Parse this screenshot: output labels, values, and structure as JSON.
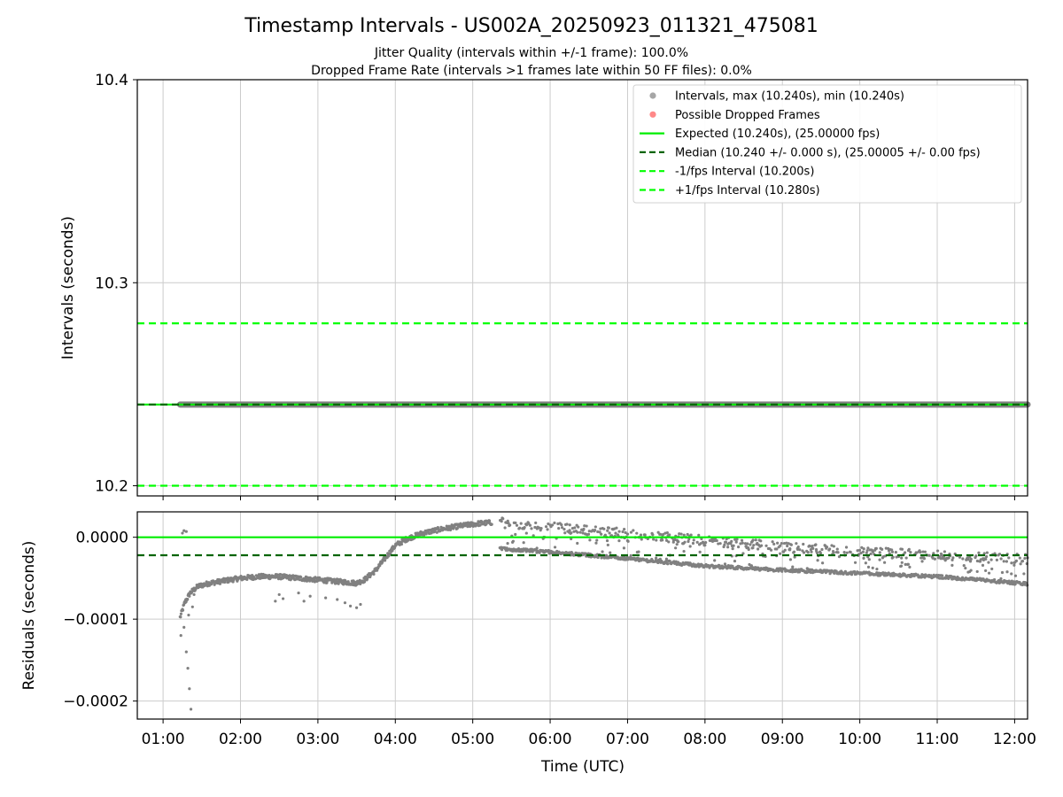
{
  "title": "Timestamp Intervals - US002A_20250923_011321_475081",
  "subtitle_1": "Jitter Quality (intervals within +/-1 frame): 100.0%",
  "subtitle_2": "Dropped Frame Rate (intervals >1 frames late within 50 FF files): 0.0%",
  "colors": {
    "intervals": "#808080",
    "dropped": "#ff5555",
    "expected": "#00ee00",
    "median": "#006400",
    "fps_band": "#00ff00",
    "grid": "#cccccc"
  },
  "chart_data": [
    {
      "type": "scatter",
      "panel": "intervals",
      "ylabel": "Intervals (seconds)",
      "xlabel": "",
      "xlim_hours": [
        0.667,
        12.167
      ],
      "ylim": [
        10.195,
        10.4
      ],
      "y_ticks": [
        10.2,
        10.3,
        10.4
      ],
      "y_tick_labels": [
        "10.2",
        "10.3",
        "10.4"
      ],
      "grid": true,
      "legend_position": "upper-right",
      "interval_points": {
        "x_start_hours": 1.22,
        "x_end_hours": 12.167,
        "y": 10.24
      },
      "dropped_frames": [],
      "reference_lines": [
        {
          "name": "expected",
          "y": 10.24,
          "style": "solid"
        },
        {
          "name": "median",
          "y": 10.24,
          "style": "dashed"
        },
        {
          "name": "minus_fps",
          "y": 10.2,
          "style": "dashed"
        },
        {
          "name": "plus_fps",
          "y": 10.28,
          "style": "dashed"
        }
      ],
      "legend": [
        {
          "label": "Intervals, max (10.240s), min (10.240s)",
          "kind": "dot",
          "color_key": "intervals"
        },
        {
          "label": "Possible Dropped Frames",
          "kind": "dot",
          "color_key": "dropped"
        },
        {
          "label": "Expected (10.240s), (25.00000 fps)",
          "kind": "solid",
          "color_key": "expected"
        },
        {
          "label": "Median (10.240 +/- 0.000 s), (25.00005 +/- 0.00 fps)",
          "kind": "dashed",
          "color_key": "median"
        },
        {
          "label": "-1/fps Interval (10.200s)",
          "kind": "dashed",
          "color_key": "fps_band"
        },
        {
          "label": "+1/fps Interval (10.280s)",
          "kind": "dashed",
          "color_key": "fps_band"
        }
      ]
    },
    {
      "type": "scatter",
      "panel": "residuals",
      "ylabel": "Residuals (seconds)",
      "xlabel": "Time (UTC)",
      "xlim_hours": [
        0.667,
        12.167
      ],
      "ylim": [
        -0.000222,
        3.1e-05
      ],
      "y_ticks": [
        0.0,
        -0.0001,
        -0.0002
      ],
      "y_tick_labels": [
        "0.0000",
        "−0.0001",
        "−0.0002"
      ],
      "x_ticks_hours": [
        1,
        2,
        3,
        4,
        5,
        6,
        7,
        8,
        9,
        10,
        11,
        12
      ],
      "x_tick_labels": [
        "01:00",
        "02:00",
        "03:00",
        "04:00",
        "05:00",
        "06:00",
        "07:00",
        "08:00",
        "09:00",
        "10:00",
        "11:00",
        "12:00"
      ],
      "grid": true,
      "reference_lines": [
        {
          "name": "expected",
          "y": 0.0,
          "style": "solid"
        },
        {
          "name": "median",
          "y": -2.2e-05,
          "style": "dashed"
        }
      ],
      "main_trend": [
        [
          1.22,
          -9.8e-05
        ],
        [
          1.28,
          -8e-05
        ],
        [
          1.35,
          -6.8e-05
        ],
        [
          1.45,
          -6e-05
        ],
        [
          1.6,
          -5.6e-05
        ],
        [
          1.8,
          -5.3e-05
        ],
        [
          2.0,
          -5e-05
        ],
        [
          2.25,
          -4.8e-05
        ],
        [
          2.5,
          -4.8e-05
        ],
        [
          2.75,
          -5e-05
        ],
        [
          3.0,
          -5.2e-05
        ],
        [
          3.25,
          -5.4e-05
        ],
        [
          3.5,
          -5.6e-05
        ],
        [
          3.6,
          -5.2e-05
        ],
        [
          3.75,
          -4e-05
        ],
        [
          3.9,
          -2.2e-05
        ],
        [
          4.0,
          -1e-05
        ],
        [
          4.15,
          -2e-06
        ],
        [
          4.35,
          5e-06
        ],
        [
          4.6,
          1e-05
        ],
        [
          4.85,
          1.4e-05
        ],
        [
          5.1,
          1.7e-05
        ],
        [
          5.25,
          1.8e-05
        ]
      ],
      "lower_branch": [
        [
          5.35,
          -1.4e-05
        ],
        [
          6.0,
          -1.8e-05
        ],
        [
          7.0,
          -2.6e-05
        ],
        [
          8.0,
          -3.5e-05
        ],
        [
          9.0,
          -4e-05
        ],
        [
          10.0,
          -4.4e-05
        ],
        [
          11.0,
          -4.8e-05
        ],
        [
          12.167,
          -5.7e-05
        ]
      ],
      "upper_branch": [
        [
          5.35,
          1.8e-05
        ],
        [
          6.0,
          1.3e-05
        ],
        [
          7.0,
          4e-06
        ],
        [
          8.0,
          -4e-06
        ],
        [
          9.0,
          -1.2e-05
        ],
        [
          10.0,
          -1.8e-05
        ],
        [
          11.0,
          -2.2e-05
        ],
        [
          12.167,
          -2.7e-05
        ]
      ],
      "outliers": [
        [
          1.25,
          5e-06
        ],
        [
          1.27,
          8e-06
        ],
        [
          1.3,
          7e-06
        ],
        [
          1.23,
          -0.00012
        ],
        [
          1.27,
          -0.00011
        ],
        [
          1.3,
          -0.00014
        ],
        [
          1.32,
          -0.00016
        ],
        [
          1.34,
          -0.000185
        ],
        [
          1.36,
          -0.00021
        ],
        [
          1.33,
          -9.5e-05
        ],
        [
          1.38,
          -8.5e-05
        ],
        [
          1.4,
          -7e-05
        ],
        [
          2.45,
          -7.8e-05
        ],
        [
          2.5,
          -7e-05
        ],
        [
          2.55,
          -7.5e-05
        ],
        [
          2.75,
          -6.8e-05
        ],
        [
          2.82,
          -7.8e-05
        ],
        [
          2.9,
          -7.2e-05
        ],
        [
          3.1,
          -7.4e-05
        ],
        [
          3.25,
          -7.6e-05
        ],
        [
          3.35,
          -8e-05
        ],
        [
          3.42,
          -8.4e-05
        ],
        [
          3.5,
          -8.6e-05
        ],
        [
          3.55,
          -8.2e-05
        ]
      ]
    }
  ]
}
